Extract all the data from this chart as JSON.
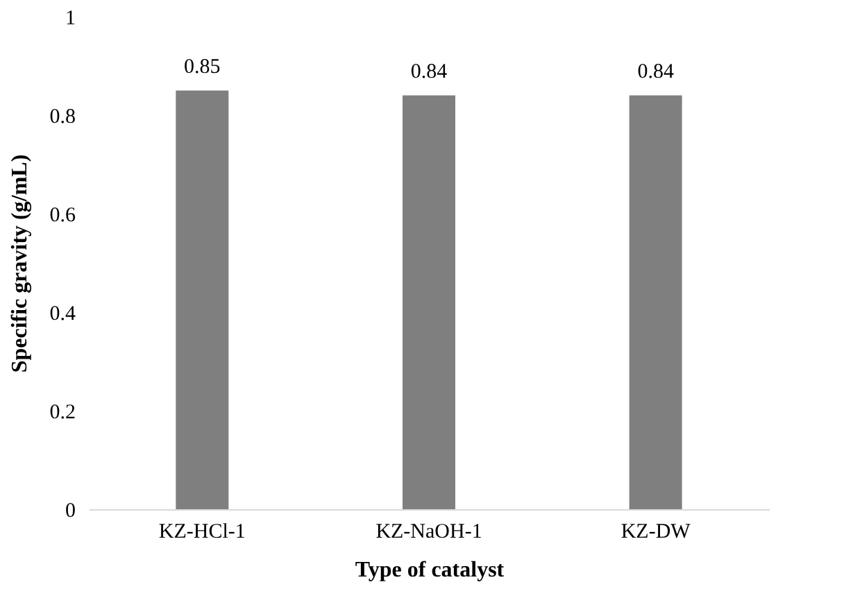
{
  "chart_data": {
    "type": "bar",
    "xlabel": "Type of catalyst",
    "ylabel": "Specific gravity (g/mL)",
    "categories": [
      "KZ-HCl-1",
      "KZ-NaOH-1",
      "KZ-DW"
    ],
    "values": [
      0.85,
      0.84,
      0.84
    ],
    "color": "#7f7f7f",
    "ylim": [
      0,
      1
    ],
    "yticks": [
      0,
      0.2,
      0.4,
      0.6,
      0.8,
      1
    ],
    "data_labels": true,
    "grid": false
  }
}
